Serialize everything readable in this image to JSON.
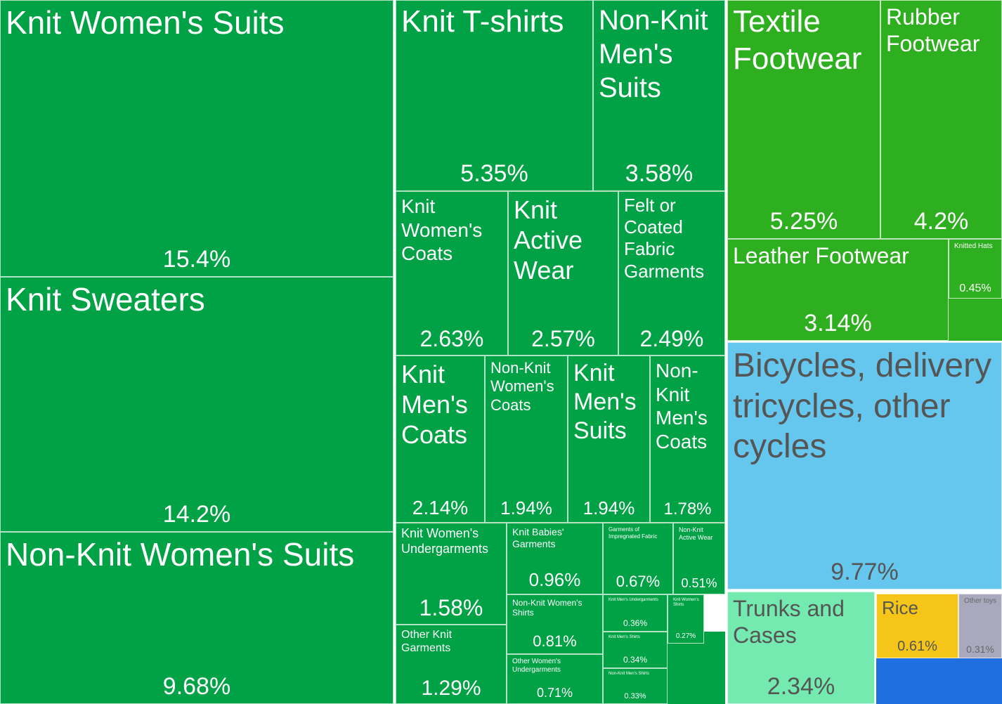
{
  "chart_data": {
    "type": "treemap",
    "items": [
      {
        "label": "Knit Women's Suits",
        "value": 15.4,
        "value_label": "15.4%",
        "color": "#00a245"
      },
      {
        "label": "Knit Sweaters",
        "value": 14.2,
        "value_label": "14.2%",
        "color": "#00a245"
      },
      {
        "label": "Non-Knit Women's Suits",
        "value": 9.68,
        "value_label": "9.68%",
        "color": "#00a245"
      },
      {
        "label": "Knit T-shirts",
        "value": 5.35,
        "value_label": "5.35%",
        "color": "#00a245"
      },
      {
        "label": "Non-Knit Men's Suits",
        "value": 3.58,
        "value_label": "3.58%",
        "color": "#00a245"
      },
      {
        "label": "Knit Women's Coats",
        "value": 2.63,
        "value_label": "2.63%",
        "color": "#00a245"
      },
      {
        "label": "Knit Active Wear",
        "value": 2.57,
        "value_label": "2.57%",
        "color": "#00a245"
      },
      {
        "label": "Felt or Coated Fabric Garments",
        "value": 2.49,
        "value_label": "2.49%",
        "color": "#00a245"
      },
      {
        "label": "Knit Men's Coats",
        "value": 2.14,
        "value_label": "2.14%",
        "color": "#00a245"
      },
      {
        "label": "Non-Knit Women's Coats",
        "value": 1.94,
        "value_label": "1.94%",
        "color": "#00a245"
      },
      {
        "label": "Knit Men's Suits",
        "value": 1.94,
        "value_label": "1.94%",
        "color": "#00a245"
      },
      {
        "label": "Non-Knit Men's Coats",
        "value": 1.78,
        "value_label": "1.78%",
        "color": "#00a245"
      },
      {
        "label": "Knit Women's Undergarments",
        "value": 1.58,
        "value_label": "1.58%",
        "color": "#00a245"
      },
      {
        "label": "Other Knit Garments",
        "value": 1.29,
        "value_label": "1.29%",
        "color": "#00a245"
      },
      {
        "label": "Knit Babies' Garments",
        "value": 0.96,
        "value_label": "0.96%",
        "color": "#00a245"
      },
      {
        "label": "Non-Knit Women's Shirts",
        "value": 0.81,
        "value_label": "0.81%",
        "color": "#00a245"
      },
      {
        "label": "Other Women's Undergarments",
        "value": 0.71,
        "value_label": "0.71%",
        "color": "#00a245"
      },
      {
        "label": "Garments of Impregnated Fabric",
        "value": 0.67,
        "value_label": "0.67%",
        "color": "#00a245"
      },
      {
        "label": "Non-Knit Active Wear",
        "value": 0.51,
        "value_label": "0.51%",
        "color": "#00a245"
      },
      {
        "label": "Knit Men's Undergarments",
        "value": 0.36,
        "value_label": "0.36%",
        "color": "#00a245"
      },
      {
        "label": "Knit Women's Shirts",
        "value": 0.27,
        "value_label": "0.27%",
        "color": "#00a245"
      },
      {
        "label": "Knit Men's Shirts",
        "value": 0.34,
        "value_label": "0.34%",
        "color": "#00a245"
      },
      {
        "label": "Non-Knit Men's Shirts",
        "value": 0.33,
        "value_label": "0.33%",
        "color": "#00a245"
      },
      {
        "label": "Textile Footwear",
        "value": 5.25,
        "value_label": "5.25%",
        "color": "#2eaf1f"
      },
      {
        "label": "Rubber Footwear",
        "value": 4.2,
        "value_label": "4.2%",
        "color": "#2eaf1f"
      },
      {
        "label": "Leather Footwear",
        "value": 3.14,
        "value_label": "3.14%",
        "color": "#2eaf1f"
      },
      {
        "label": "Knitted Hats",
        "value": 0.45,
        "value_label": "0.45%",
        "color": "#2eaf1f"
      },
      {
        "label": "Bicycles, delivery tricycles, other cycles",
        "value": 9.77,
        "value_label": "9.77%",
        "color": "#66c7ee"
      },
      {
        "label": "Trunks and Cases",
        "value": 2.34,
        "value_label": "2.34%",
        "color": "#74eab0"
      },
      {
        "label": "Rice",
        "value": 0.61,
        "value_label": "0.61%",
        "color": "#f5c518"
      },
      {
        "label": "Other toys",
        "value": 0.31,
        "value_label": "0.31%",
        "color": "#a8a9bd"
      }
    ]
  }
}
